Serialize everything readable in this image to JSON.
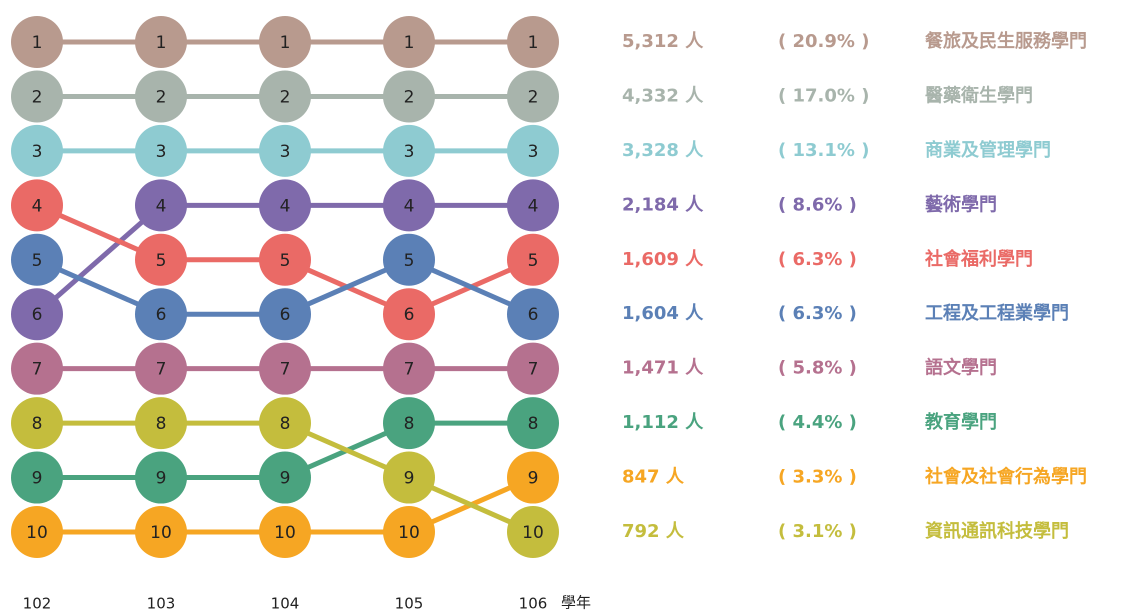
{
  "chart_data": {
    "type": "bump",
    "categories": [
      "102",
      "103",
      "104",
      "105",
      "106"
    ],
    "x_label": "學年",
    "ylim": [
      1,
      10
    ],
    "y_inverted": true,
    "series": [
      {
        "name": "餐旅及民生服務學門",
        "color": "#b89a8e",
        "values": [
          1,
          1,
          1,
          1,
          1
        ],
        "count": 5312,
        "count_label": "5,312 人",
        "share": 20.9,
        "share_label": "( 20.9% )"
      },
      {
        "name": "醫藥衛生學門",
        "color": "#a8b4ac",
        "values": [
          2,
          2,
          2,
          2,
          2
        ],
        "count": 4332,
        "count_label": "4,332 人",
        "share": 17.0,
        "share_label": "( 17.0% )"
      },
      {
        "name": "商業及管理學門",
        "color": "#8ecbd1",
        "values": [
          3,
          3,
          3,
          3,
          3
        ],
        "count": 3328,
        "count_label": "3,328 人",
        "share": 13.1,
        "share_label": "( 13.1% )"
      },
      {
        "name": "藝術學門",
        "color": "#7f6aab",
        "values": [
          6,
          4,
          4,
          4,
          4
        ],
        "count": 2184,
        "count_label": "2,184 人",
        "share": 8.6,
        "share_label": "( 8.6% )"
      },
      {
        "name": "社會福利學門",
        "color": "#ea6a66",
        "values": [
          4,
          5,
          5,
          6,
          5
        ],
        "count": 1609,
        "count_label": "1,609 人",
        "share": 6.3,
        "share_label": "( 6.3% )"
      },
      {
        "name": "工程及工程業學門",
        "color": "#5b80b6",
        "values": [
          5,
          6,
          6,
          5,
          6
        ],
        "count": 1604,
        "count_label": "1,604 人",
        "share": 6.3,
        "share_label": "( 6.3% )"
      },
      {
        "name": "語文學門",
        "color": "#b5718f",
        "values": [
          7,
          7,
          7,
          7,
          7
        ],
        "count": 1471,
        "count_label": "1,471 人",
        "share": 5.8,
        "share_label": "( 5.8% )"
      },
      {
        "name": "教育學門",
        "color": "#4aa37f",
        "values": [
          9,
          9,
          9,
          8,
          8
        ],
        "count": 1112,
        "count_label": "1,112 人",
        "share": 4.4,
        "share_label": "( 4.4% )"
      },
      {
        "name": "社會及社會行為學門",
        "color": "#f6a623",
        "values": [
          10,
          10,
          10,
          10,
          9
        ],
        "count": 847,
        "count_label": "847 人",
        "share": 3.3,
        "share_label": "( 3.3% )"
      },
      {
        "name": "資訊通訊科技學門",
        "color": "#c4bd3d",
        "values": [
          8,
          8,
          8,
          9,
          10
        ],
        "count": 792,
        "count_label": "792 人",
        "share": 3.1,
        "share_label": "( 3.1% )"
      }
    ]
  }
}
